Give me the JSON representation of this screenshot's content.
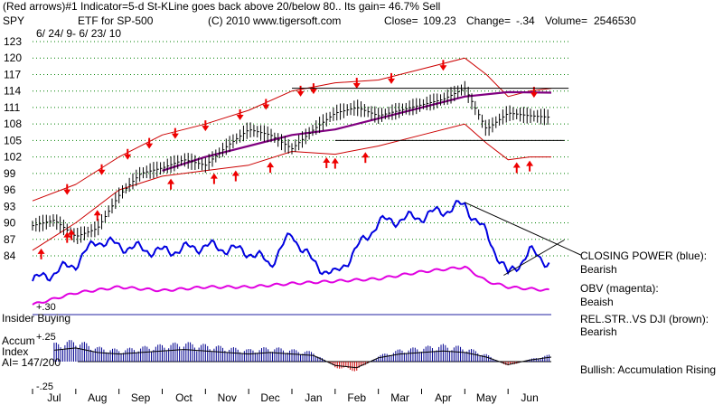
{
  "header": {
    "line1": "(Red arrows)#1 Indicator=5-d St-KLine goes back above 20/below 80.. Its gain= 46.7% Sell",
    "symbol": "SPY",
    "etf": "ETF for SP-500",
    "copyright": "(C) 2010 www.tigersoft.com",
    "close_label": "Close=",
    "close_value": "109.23",
    "change_label": "Change=",
    "change_value": "-.34",
    "volume_label": "Volume=",
    "volume_value": "2546530",
    "date_range": "6/ 24/ 9- 6/ 23/ 10"
  },
  "indicators": {
    "closing_power_title": "CLOSING POWER (blue):",
    "closing_power_status": "Bearish",
    "obv_title": "OBV (magenta):",
    "obv_status": "Beaish",
    "relstr_title": "REL.STR..VS DJI (brown):",
    "relstr_status": "Bearish",
    "accum_summary": "Bullish: Accumulation Rising"
  },
  "lower_panel": {
    "plus30": "+.30",
    "insider_buying": "Insider Buying",
    "plus25": "+.25",
    "accum_label": "Accum",
    "index_label": "Index",
    "ai_value": "AI= 147/200",
    "minus25": "-.25"
  },
  "colors": {
    "price_bars": "#000000",
    "bands": "#cc0000",
    "ma200": "#800080",
    "closing_power": "#0000e0",
    "obv": "#e000e0",
    "arrows": "#ee0000",
    "grid": "#008000",
    "accum_bars": "#000090",
    "distrib_bars": "#cc0000"
  },
  "chart_data": [
    {
      "type": "line",
      "title": "SPY price with bands",
      "y_ticks": [
        123,
        120,
        117,
        114,
        111,
        108,
        105,
        102,
        99,
        96,
        93,
        90,
        87,
        84
      ],
      "ylim": [
        83,
        124
      ],
      "months": [
        "Jul",
        "Aug",
        "Sep",
        "Oct",
        "Nov",
        "Dec",
        "Jan",
        "Feb",
        "Mar",
        "Apr",
        "May",
        "Jun"
      ],
      "series": [
        {
          "role": "close",
          "x": [
            0,
            0.5,
            1,
            1.5,
            2,
            2.5,
            3,
            3.5,
            4,
            4.5,
            5,
            5.5,
            6,
            6.5,
            7,
            7.5,
            8,
            8.5,
            9,
            9.5,
            10,
            10.5,
            11,
            11.5,
            12
          ],
          "values": [
            89.5,
            90.5,
            87.5,
            89,
            95,
            99,
            100,
            101.5,
            100.5,
            104,
            107,
            106,
            103.5,
            107,
            110,
            111,
            109.5,
            110.5,
            111.5,
            112.5,
            114.5,
            107,
            110,
            109.5,
            109.2
          ]
        },
        {
          "role": "upper band",
          "x": [
            0,
            1,
            2,
            3,
            4,
            5,
            6,
            7,
            8,
            9,
            10,
            10.5,
            11,
            11.5,
            12
          ],
          "values": [
            94,
            97,
            102,
            106,
            108,
            110.5,
            114,
            115.5,
            116,
            118,
            120,
            117,
            113,
            114,
            114.5
          ]
        },
        {
          "role": "lower band",
          "x": [
            0,
            1,
            2,
            3,
            4,
            5,
            6,
            7,
            8,
            9,
            10,
            10.5,
            11,
            11.5,
            12
          ],
          "values": [
            85,
            90,
            96,
            98.5,
            99.5,
            100.5,
            103,
            102.5,
            104,
            106,
            108,
            104.5,
            101.5,
            102,
            102
          ]
        },
        {
          "role": "moving average",
          "x": [
            3,
            4,
            5,
            6,
            7,
            8,
            9,
            10,
            11,
            12
          ],
          "values": [
            99.5,
            102,
            104,
            106,
            107,
            109,
            111,
            113,
            113.8,
            113.7
          ]
        }
      ],
      "reference_lines": [
        {
          "value": 114.5,
          "x_start": 6,
          "x_end": 12.4
        },
        {
          "value": 105,
          "x_start": 7,
          "x_end": 12.3
        }
      ],
      "sell_arrows_x": [
        0.8,
        1.6,
        2.2,
        2.7,
        3.3,
        4,
        4.8,
        5.4,
        6.2,
        6.5,
        7.5,
        8.3,
        9.5,
        11.6
      ],
      "buy_arrows_x": [
        0.2,
        0.8,
        0.9,
        1.5,
        3.2,
        4.2,
        4.7,
        5.5,
        6.8,
        7,
        7.7,
        11.2,
        11.5
      ]
    },
    {
      "type": "line",
      "title": "Indicators",
      "series": [
        {
          "role": "closing power",
          "x": [
            0,
            1,
            1.5,
            2,
            3,
            4,
            5,
            5.5,
            6,
            6.5,
            7,
            8,
            9,
            10,
            10.5,
            11,
            11.5,
            12
          ],
          "values": [
            0.3,
            0.45,
            0.65,
            0.6,
            0.55,
            0.6,
            0.55,
            0.45,
            0.7,
            0.45,
            0.35,
            0.8,
            0.85,
            0.95,
            0.7,
            0.35,
            0.55,
            0.45
          ]
        },
        {
          "role": "obv",
          "x": [
            0,
            1,
            2,
            3,
            4,
            5,
            6,
            7,
            8,
            9,
            10,
            10.5,
            11,
            12
          ],
          "values": [
            0.1,
            0.2,
            0.25,
            0.22,
            0.25,
            0.25,
            0.28,
            0.3,
            0.32,
            0.38,
            0.42,
            0.3,
            0.25,
            0.22
          ]
        }
      ]
    },
    {
      "type": "bar",
      "title": "Accumulation Index",
      "ylim": [
        -0.3,
        0.3
      ],
      "x": [
        0.5,
        1,
        1.5,
        2,
        2.5,
        3,
        3.5,
        4,
        4.5,
        5,
        5.5,
        6,
        6.5,
        7,
        7.5,
        8,
        8.5,
        9,
        9.5,
        10,
        10.5,
        11,
        11.5,
        12
      ],
      "values": [
        0.15,
        0.18,
        0.12,
        0.1,
        0.12,
        0.14,
        0.16,
        0.14,
        0.12,
        0.1,
        0.12,
        0.1,
        0.08,
        -0.05,
        -0.08,
        0.05,
        0.1,
        0.12,
        0.14,
        0.12,
        0.06,
        -0.04,
        0.02,
        0.06
      ]
    }
  ]
}
